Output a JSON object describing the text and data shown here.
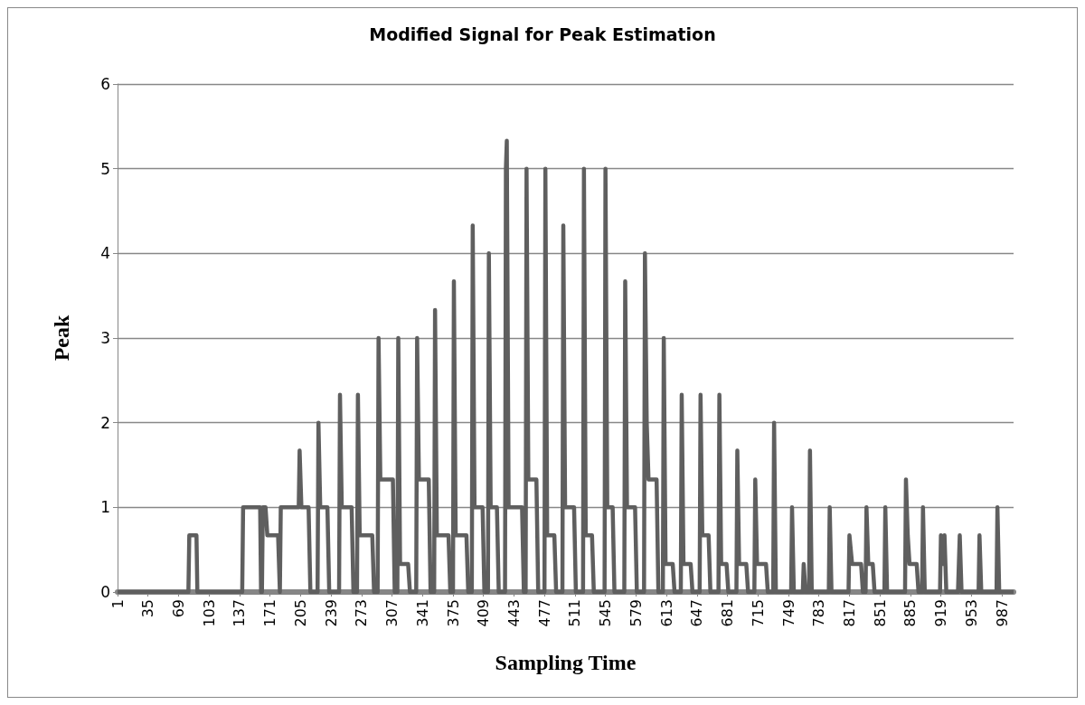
{
  "chart_data": {
    "type": "line",
    "title": "Modified Signal for Peak Estimation",
    "xlabel": "Sampling Time",
    "ylabel": "Peak",
    "xlim": [
      1,
      1000
    ],
    "xticks": [
      1,
      35,
      69,
      103,
      137,
      171,
      205,
      239,
      273,
      307,
      341,
      375,
      409,
      443,
      477,
      511,
      545,
      579,
      613,
      647,
      681,
      715,
      749,
      783,
      817,
      851,
      885,
      919,
      953,
      987
    ],
    "ylim": [
      0,
      6
    ],
    "yticks": [
      0,
      1,
      2,
      3,
      4,
      5,
      6
    ],
    "grid": "y",
    "series": [
      {
        "color": "#5f5f5f",
        "x": [
          1,
          80,
          81,
          89,
          90,
          140,
          141,
          160,
          161,
          162,
          163,
          166,
          168,
          180,
          182,
          183,
          203,
          204,
          206,
          214,
          216,
          224,
          225,
          227,
          235,
          237,
          248,
          249,
          251,
          262,
          264,
          268,
          269,
          271,
          285,
          287,
          291,
          292,
          294,
          308,
          310,
          313,
          314,
          316,
          325,
          327,
          334,
          335,
          337,
          348,
          350,
          354,
          355,
          357,
          370,
          372,
          375,
          376,
          378,
          390,
          392,
          396,
          397,
          399,
          408,
          410,
          414,
          415,
          417,
          424,
          426,
          433,
          434,
          435,
          437,
          452,
          454,
          456,
          457,
          459,
          468,
          470,
          477,
          478,
          480,
          488,
          490,
          497,
          498,
          500,
          510,
          512,
          520,
          521,
          523,
          530,
          532,
          544,
          545,
          547,
          553,
          555,
          566,
          567,
          569,
          578,
          580,
          588,
          589,
          591,
          593,
          602,
          604,
          609,
          610,
          612,
          620,
          622,
          629,
          630,
          632,
          640,
          642,
          650,
          651,
          653,
          660,
          662,
          671,
          672,
          674,
          680,
          682,
          691,
          692,
          694,
          702,
          704,
          711,
          712,
          714,
          724,
          726,
          732,
          733,
          735,
          752,
          753,
          755,
          765,
          766,
          768,
          772,
          773,
          775,
          794,
          795,
          797,
          816,
          817,
          820,
          830,
          832,
          835,
          836,
          838,
          843,
          845,
          856,
          857,
          859,
          879,
          880,
          882,
          884,
          892,
          894,
          898,
          899,
          901,
          918,
          919,
          921,
          923,
          925,
          938,
          939,
          940,
          942,
          961,
          962,
          964,
          981,
          982,
          984,
          1000
        ],
        "values": [
          0,
          0,
          0.67,
          0.67,
          0,
          0,
          1,
          1,
          0,
          0,
          1,
          1,
          0.67,
          0.67,
          0,
          1,
          1,
          1.67,
          1,
          1,
          0,
          0,
          2,
          1,
          1,
          0,
          0,
          2.33,
          1,
          1,
          0,
          0,
          2.33,
          0.67,
          0.67,
          0,
          0,
          3,
          1.33,
          1.33,
          0,
          0,
          3,
          0.33,
          0.33,
          0,
          0,
          3,
          1.33,
          1.33,
          0,
          0,
          3.33,
          0.67,
          0.67,
          0,
          0,
          3.67,
          0.67,
          0.67,
          0,
          0,
          4.33,
          1,
          1,
          0,
          0,
          4,
          1,
          1,
          0,
          0,
          5,
          5.33,
          1,
          1,
          0,
          0,
          5,
          1.33,
          1.33,
          0,
          0,
          5,
          0.67,
          0.67,
          0,
          0,
          4.33,
          1,
          1,
          0,
          0,
          5,
          0.67,
          0.67,
          0,
          0,
          5,
          1,
          1,
          0,
          0,
          3.67,
          1,
          1,
          0,
          0,
          4,
          2,
          1.33,
          1.33,
          0,
          0,
          3,
          0.33,
          0.33,
          0,
          0,
          2.33,
          0.33,
          0.33,
          0,
          0,
          2.33,
          0.67,
          0.67,
          0,
          0,
          2.33,
          0.33,
          0.33,
          0,
          0,
          1.67,
          0.33,
          0.33,
          0,
          0,
          1.33,
          0.33,
          0.33,
          0,
          0,
          2,
          0,
          0,
          1,
          0,
          0,
          0.33,
          0,
          0,
          1.67,
          0,
          0,
          1,
          0,
          0,
          0.67,
          0.33,
          0.33,
          0,
          0,
          1,
          0.33,
          0.33,
          0,
          0,
          1,
          0,
          0,
          1.33,
          0.67,
          0.33,
          0.33,
          0,
          0,
          1,
          0,
          0,
          0.67,
          0.33,
          0.67,
          0,
          0,
          0.33,
          0.67,
          0,
          0,
          0.67,
          0,
          0,
          1,
          0,
          0
        ]
      }
    ]
  }
}
